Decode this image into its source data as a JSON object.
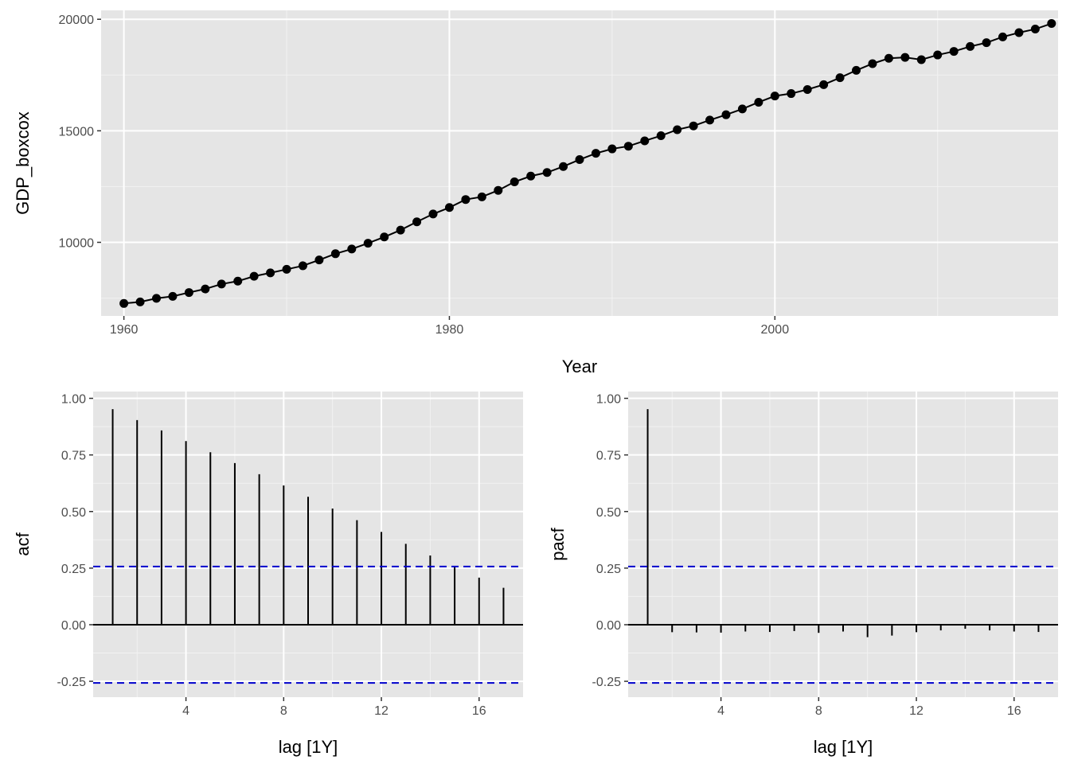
{
  "colors": {
    "panel_bg": "#E5E5E5",
    "grid_major": "#FFFFFF",
    "grid_minor": "#F2F2F2",
    "line": "#000000",
    "ci": "#0000CC",
    "tick_text": "#4D4D4D"
  },
  "chart_data": [
    {
      "type": "line",
      "xlabel": "Year",
      "ylabel": "GDP_boxcox",
      "xlim": [
        1958.6,
        2017.4
      ],
      "ylim": [
        6700,
        20400
      ],
      "x_ticks": [
        1960,
        1980,
        2000
      ],
      "x_tick_labels": [
        "1960",
        "1980",
        "2000"
      ],
      "y_ticks": [
        10000,
        15000,
        20000
      ],
      "y_tick_labels": [
        "10000",
        "15000",
        "20000"
      ],
      "markers": true,
      "grid": true,
      "x": [
        1960,
        1961,
        1962,
        1963,
        1964,
        1965,
        1966,
        1967,
        1968,
        1969,
        1970,
        1971,
        1972,
        1973,
        1974,
        1975,
        1976,
        1977,
        1978,
        1979,
        1980,
        1981,
        1982,
        1983,
        1984,
        1985,
        1986,
        1987,
        1988,
        1989,
        1990,
        1991,
        1992,
        1993,
        1994,
        1995,
        1996,
        1997,
        1998,
        1999,
        2000,
        2001,
        2002,
        2003,
        2004,
        2005,
        2006,
        2007,
        2008,
        2009,
        2010,
        2011,
        2012,
        2013,
        2014,
        2015,
        2016,
        2017
      ],
      "y": [
        7260,
        7330,
        7490,
        7580,
        7750,
        7910,
        8130,
        8260,
        8480,
        8630,
        8790,
        8950,
        9210,
        9490,
        9700,
        9960,
        10240,
        10550,
        10920,
        11270,
        11560,
        11920,
        12040,
        12330,
        12710,
        12970,
        13130,
        13400,
        13710,
        13990,
        14190,
        14310,
        14550,
        14780,
        15050,
        15220,
        15480,
        15720,
        15980,
        16280,
        16560,
        16670,
        16850,
        17070,
        17380,
        17710,
        18010,
        18250,
        18290,
        18190,
        18400,
        18560,
        18780,
        18950,
        19210,
        19400,
        19560,
        19810
      ]
    },
    {
      "type": "bar",
      "xlabel": "lag [1Y]",
      "ylabel": "acf",
      "xlim": [
        0.2,
        17.8
      ],
      "ylim": [
        -0.32,
        1.03
      ],
      "x_ticks": [
        4,
        8,
        12,
        16
      ],
      "x_tick_labels": [
        "4",
        "8",
        "12",
        "16"
      ],
      "y_ticks": [
        -0.25,
        0,
        0.25,
        0.5,
        0.75,
        1
      ],
      "y_tick_labels": [
        "-0.25",
        "0.00",
        "0.25",
        "0.50",
        "0.75",
        "1.00"
      ],
      "ci": 0.257,
      "lags": [
        1,
        2,
        3,
        4,
        5,
        6,
        7,
        8,
        9,
        10,
        11,
        12,
        13,
        14,
        15,
        16,
        17
      ],
      "values": [
        0.952,
        0.904,
        0.858,
        0.811,
        0.762,
        0.714,
        0.665,
        0.615,
        0.565,
        0.513,
        0.462,
        0.41,
        0.357,
        0.306,
        0.256,
        0.208,
        0.163
      ]
    },
    {
      "type": "bar",
      "xlabel": "lag [1Y]",
      "ylabel": "pacf",
      "xlim": [
        0.2,
        17.8
      ],
      "ylim": [
        -0.32,
        1.03
      ],
      "x_ticks": [
        4,
        8,
        12,
        16
      ],
      "x_tick_labels": [
        "4",
        "8",
        "12",
        "16"
      ],
      "y_ticks": [
        -0.25,
        0,
        0.25,
        0.5,
        0.75,
        1
      ],
      "y_tick_labels": [
        "-0.25",
        "0.00",
        "0.25",
        "0.50",
        "0.75",
        "1.00"
      ],
      "ci": 0.257,
      "lags": [
        1,
        2,
        3,
        4,
        5,
        6,
        7,
        8,
        9,
        10,
        11,
        12,
        13,
        14,
        15,
        16,
        17
      ],
      "values": [
        0.952,
        -0.033,
        -0.034,
        -0.035,
        -0.03,
        -0.032,
        -0.028,
        -0.036,
        -0.03,
        -0.055,
        -0.048,
        -0.033,
        -0.025,
        -0.018,
        -0.025,
        -0.03,
        -0.032
      ]
    }
  ]
}
